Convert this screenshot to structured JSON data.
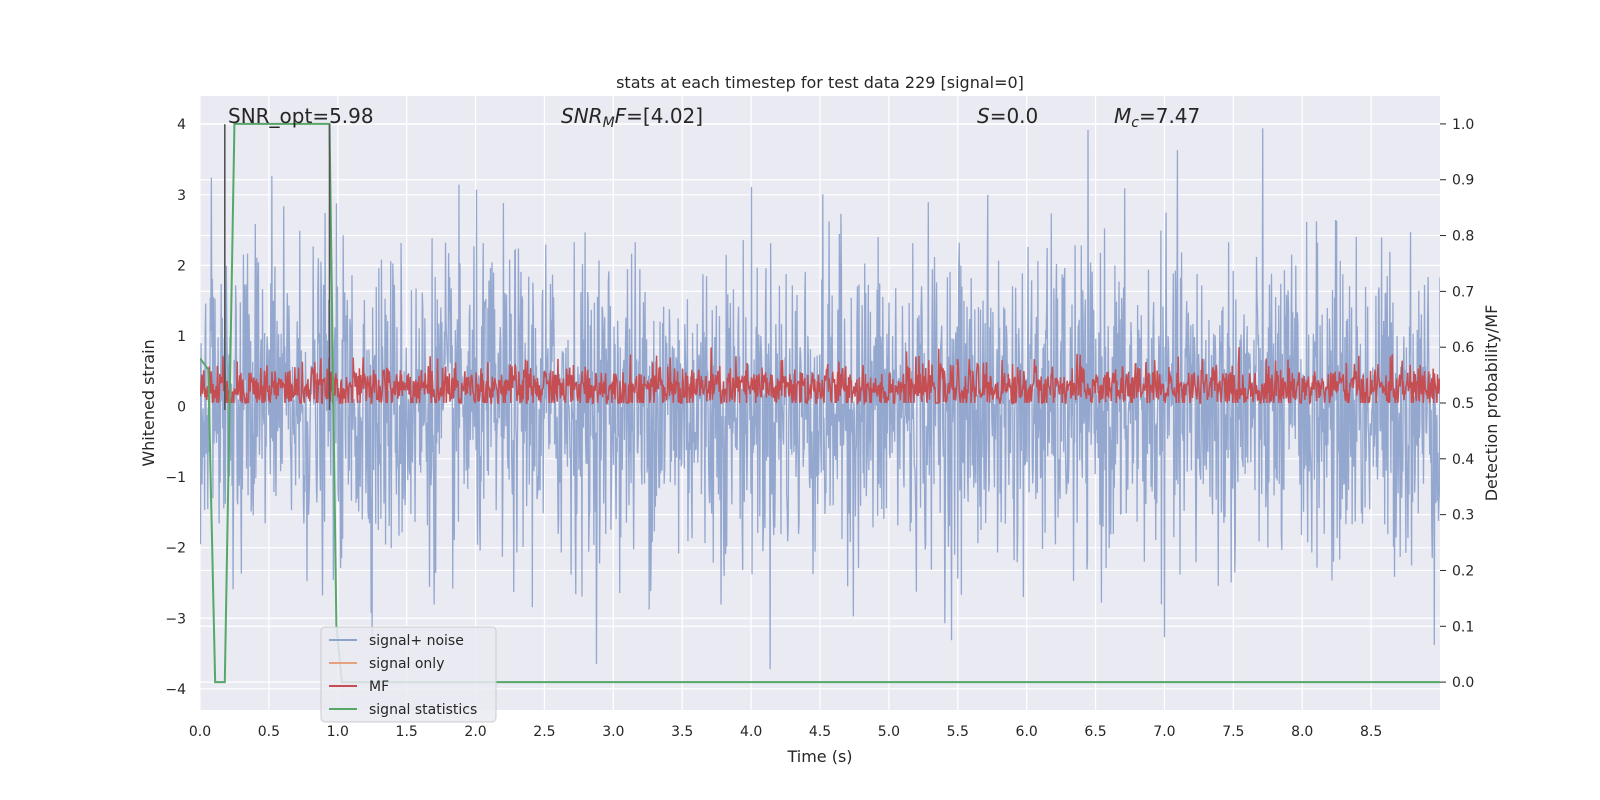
{
  "chart_data": {
    "type": "line",
    "title": "stats at each timestep for test data 229 [signal=0]",
    "xlabel": "Time (s)",
    "ylabel": "Whitened strain",
    "ylabel_right": "Detection probability/MF",
    "xlim": [
      0.0,
      9.0
    ],
    "ylim_left": [
      -4.3,
      4.4
    ],
    "ylim_right": [
      -0.05,
      1.05
    ],
    "x_ticks": [
      "0.0",
      "0.5",
      "1.0",
      "1.5",
      "2.0",
      "2.5",
      "3.0",
      "3.5",
      "4.0",
      "4.5",
      "5.0",
      "5.5",
      "6.0",
      "6.5",
      "7.0",
      "7.5",
      "8.0",
      "8.5"
    ],
    "y_ticks_left": [
      "4",
      "3",
      "2",
      "1",
      "0",
      "−1",
      "−2",
      "−3",
      "−4"
    ],
    "y_ticks_right": [
      "1.0",
      "0.9",
      "0.8",
      "0.7",
      "0.6",
      "0.5",
      "0.4",
      "0.3",
      "0.2",
      "0.1",
      "0.0"
    ],
    "grid": true,
    "annotations": [
      {
        "prefix": "SNR_opt",
        "sub": "",
        "suffix": "=5.98",
        "italic": false
      },
      {
        "prefix": "SNR",
        "sub": "M",
        "suffix": "F=[4.02]",
        "italic": true
      },
      {
        "prefix": "S",
        "sub": "",
        "suffix": "=0.0",
        "italic": true
      },
      {
        "prefix": "M",
        "sub": "c",
        "suffix": "=7.47",
        "italic": true
      }
    ],
    "legend": {
      "placement": "lower-left",
      "entries": [
        "signal+ noise",
        "signal only",
        "MF",
        "signal statistics"
      ]
    },
    "series": [
      {
        "name": "signal+ noise",
        "axis": "left",
        "color": "#8fa4cc",
        "description_amp": {
          "envelope_max": 4.0,
          "envelope_min": -3.9
        }
      },
      {
        "name": "signal only",
        "axis": "left",
        "color": "#e5a080",
        "values": []
      },
      {
        "name": "MF",
        "axis": "right",
        "color": "#c44e52",
        "range": [
          0.5,
          0.6
        ]
      },
      {
        "name": "signal statistics",
        "axis": "right",
        "color": "#55a868",
        "x": [
          0.0,
          0.06,
          0.11,
          0.18,
          0.25,
          0.94,
          0.99,
          1.03,
          9.0
        ],
        "values": [
          0.58,
          0.56,
          0.0,
          0.0,
          1.0,
          1.0,
          0.1,
          0.0,
          0.0
        ]
      },
      {
        "name": "vertical markers",
        "axis": "left",
        "color": "#555555",
        "x": [
          0.18,
          0.94
        ]
      }
    ],
    "colors": {
      "plot_bg": "#eaeaf2",
      "grid": "#ffffff",
      "noise": "#8fa4cc",
      "mf": "#c44e52",
      "stat": "#55a868"
    }
  }
}
